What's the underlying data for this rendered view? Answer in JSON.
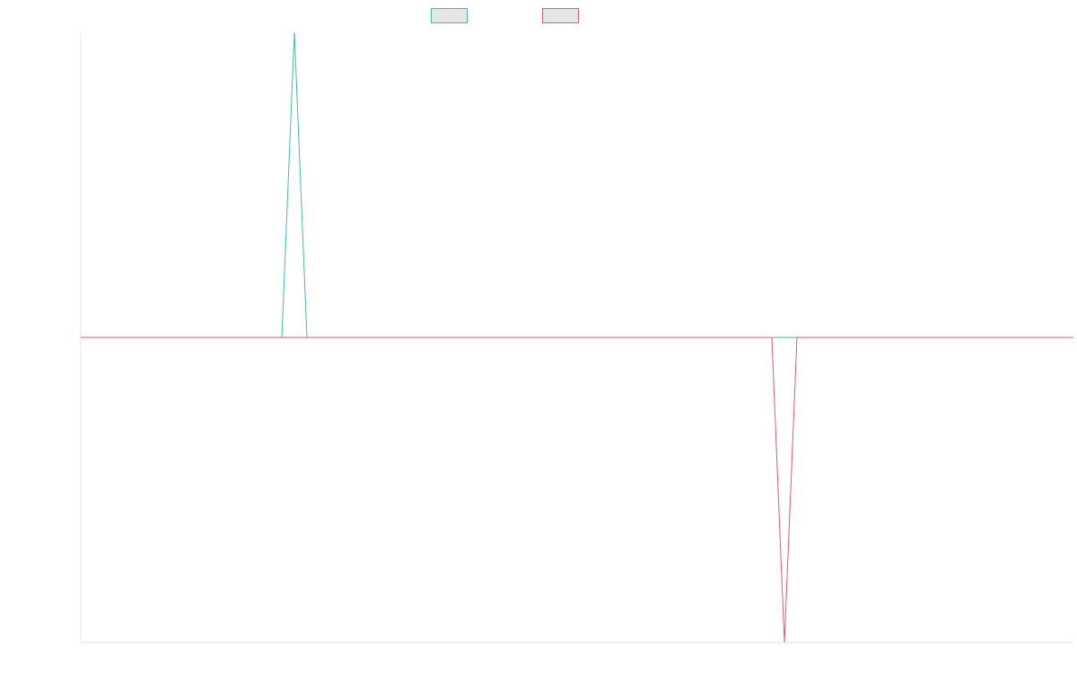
{
  "chart_data": {
    "type": "line",
    "title": "",
    "xlabel": "",
    "ylabel": "",
    "x": [
      0,
      1,
      2,
      3,
      4,
      5,
      6,
      7,
      8,
      9,
      10,
      11,
      12,
      13,
      14,
      15,
      16,
      17,
      18,
      19,
      20,
      21,
      22,
      23,
      24,
      25,
      26,
      27,
      28,
      29,
      30,
      31,
      32,
      33,
      34,
      35,
      36,
      37,
      38,
      39,
      40,
      41,
      42,
      43,
      44,
      45,
      46,
      47,
      48,
      49,
      50,
      51,
      52,
      53,
      54,
      55,
      56,
      57,
      58,
      59,
      60,
      61,
      62,
      63,
      64,
      65,
      66,
      67,
      68,
      69,
      70,
      71,
      72,
      73,
      74,
      75,
      76,
      77,
      78,
      79
    ],
    "ylim": [
      -1,
      1
    ],
    "grid": false,
    "legend": "top-center",
    "series": [
      {
        "name": "",
        "color": "#3bbfad",
        "values": [
          0,
          0,
          0,
          0,
          0,
          0,
          0,
          0,
          0,
          0,
          0,
          0,
          0,
          0,
          0,
          0,
          0,
          1,
          0,
          0,
          0,
          0,
          0,
          0,
          0,
          0,
          0,
          0,
          0,
          0,
          0,
          0,
          0,
          0,
          0,
          0,
          0,
          0,
          0,
          0,
          0,
          0,
          0,
          0,
          0,
          0,
          0,
          0,
          0,
          0,
          0,
          0,
          0,
          0,
          0,
          0,
          0,
          0,
          0,
          0,
          0,
          0,
          0,
          0,
          0,
          0,
          0,
          0,
          0,
          0,
          0,
          0,
          0,
          0,
          0,
          0,
          0,
          0,
          0,
          0
        ]
      },
      {
        "name": "",
        "color": "#e8567a",
        "values": [
          0,
          0,
          0,
          0,
          0,
          0,
          0,
          0,
          0,
          0,
          0,
          0,
          0,
          0,
          0,
          0,
          0,
          0,
          0,
          0,
          0,
          0,
          0,
          0,
          0,
          0,
          0,
          0,
          0,
          0,
          0,
          0,
          0,
          0,
          0,
          0,
          0,
          0,
          0,
          0,
          0,
          0,
          0,
          0,
          0,
          0,
          0,
          0,
          0,
          0,
          0,
          0,
          0,
          0,
          0,
          0,
          -1,
          0,
          0,
          0,
          0,
          0,
          0,
          0,
          0,
          0,
          0,
          0,
          0,
          0,
          0,
          0,
          0,
          0,
          0,
          0,
          0,
          0,
          0,
          0
        ]
      }
    ]
  }
}
